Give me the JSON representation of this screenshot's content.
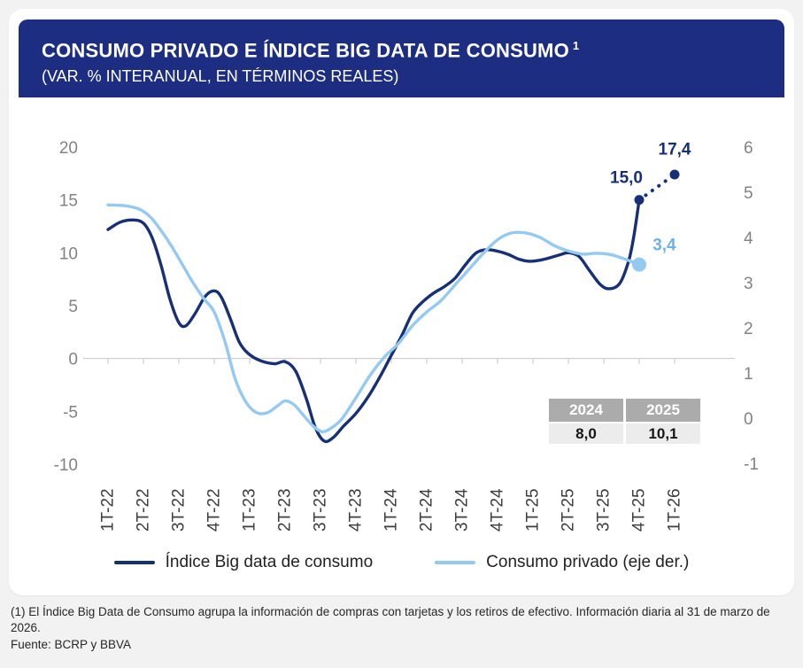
{
  "colors": {
    "page_bg": "#f2f2f2",
    "card_bg": "#ffffff",
    "header_bg": "#1c2d82",
    "header_text": "#ffffff",
    "axis_text": "#828282",
    "x_tick_text": "#3d3d3d",
    "zero_line": "#c6c6c6",
    "table_header_bg": "#ababab",
    "table_value_bg": "#ececec"
  },
  "chart_data": {
    "type": "line",
    "title": "CONSUMO PRIVADO E ÍNDICE BIG DATA DE CONSUMO",
    "footnote_marker": "1",
    "subtitle": "(VAR. % INTERANUAL, EN TÉRMINOS REALES)",
    "categories": [
      "1T-22",
      "2T-22",
      "3T-22",
      "4T-22",
      "1T-23",
      "2T-23",
      "3T-23",
      "4T-23",
      "1T-24",
      "2T-24",
      "3T-24",
      "4T-24",
      "1T-25",
      "2T-25",
      "3T-25",
      "4T-25",
      "1T-26"
    ],
    "left_axis": {
      "ticks": [
        20,
        15,
        10,
        5,
        0,
        -5,
        -10
      ],
      "max": 20,
      "min": -10
    },
    "right_axis": {
      "ticks": [
        6,
        5,
        4,
        3,
        2,
        1,
        0,
        -1
      ],
      "max": 6,
      "min": -1
    },
    "grid": false,
    "legend_position": "bottom",
    "series": [
      {
        "name": "Índice Big data de consumo",
        "axis": "left",
        "color": "#172f76",
        "points": [
          [
            0,
            12.2
          ],
          [
            0.35,
            12.9
          ],
          [
            0.7,
            13.1
          ],
          [
            1,
            12.8
          ],
          [
            1.25,
            11.4
          ],
          [
            1.5,
            8.8
          ],
          [
            1.75,
            5.6
          ],
          [
            2,
            3.4
          ],
          [
            2.2,
            3.1
          ],
          [
            2.45,
            4.2
          ],
          [
            2.75,
            5.9
          ],
          [
            3,
            6.4
          ],
          [
            3.2,
            5.8
          ],
          [
            3.45,
            3.8
          ],
          [
            3.7,
            1.6
          ],
          [
            3.95,
            0.5
          ],
          [
            4.3,
            -0.2
          ],
          [
            4.7,
            -0.5
          ],
          [
            5,
            -0.3
          ],
          [
            5.3,
            -1.2
          ],
          [
            5.6,
            -3.8
          ],
          [
            5.85,
            -6.5
          ],
          [
            6.1,
            -7.8
          ],
          [
            6.35,
            -7.5
          ],
          [
            6.65,
            -6.4
          ],
          [
            7,
            -5.2
          ],
          [
            7.35,
            -3.6
          ],
          [
            7.7,
            -1.6
          ],
          [
            8,
            0.3
          ],
          [
            8.3,
            2.2
          ],
          [
            8.6,
            4.3
          ],
          [
            8.9,
            5.4
          ],
          [
            9.2,
            6.2
          ],
          [
            9.5,
            6.8
          ],
          [
            9.8,
            7.6
          ],
          [
            10.1,
            8.9
          ],
          [
            10.4,
            10
          ],
          [
            10.7,
            10.3
          ],
          [
            11,
            10.15
          ],
          [
            11.3,
            9.85
          ],
          [
            11.6,
            9.4
          ],
          [
            11.9,
            9.2
          ],
          [
            12.2,
            9.3
          ],
          [
            12.5,
            9.55
          ],
          [
            12.8,
            9.85
          ],
          [
            13,
            10
          ],
          [
            13.3,
            9.65
          ],
          [
            13.6,
            8.3
          ],
          [
            13.9,
            7
          ],
          [
            14.15,
            6.6
          ],
          [
            14.45,
            7.1
          ],
          [
            14.7,
            9.2
          ],
          [
            14.85,
            11.6
          ],
          [
            15,
            15.0
          ]
        ],
        "forecast_points": [
          [
            15,
            15.0
          ],
          [
            16,
            17.4
          ]
        ]
      },
      {
        "name": "Consumo privado (eje der.)",
        "axis": "right",
        "color": "#94c9f2",
        "points": [
          [
            0,
            4.72
          ],
          [
            0.5,
            4.7
          ],
          [
            0.9,
            4.62
          ],
          [
            1.2,
            4.45
          ],
          [
            1.5,
            4.15
          ],
          [
            1.8,
            3.8
          ],
          [
            2.1,
            3.4
          ],
          [
            2.4,
            3.0
          ],
          [
            2.7,
            2.65
          ],
          [
            3,
            2.35
          ],
          [
            3.3,
            1.7
          ],
          [
            3.6,
            0.85
          ],
          [
            3.9,
            0.35
          ],
          [
            4.2,
            0.12
          ],
          [
            4.5,
            0.12
          ],
          [
            4.8,
            0.28
          ],
          [
            5,
            0.38
          ],
          [
            5.25,
            0.3
          ],
          [
            5.5,
            0.08
          ],
          [
            5.8,
            -0.18
          ],
          [
            6.05,
            -0.3
          ],
          [
            6.3,
            -0.22
          ],
          [
            6.6,
            -0.02
          ],
          [
            7,
            0.45
          ],
          [
            7.4,
            0.95
          ],
          [
            7.8,
            1.35
          ],
          [
            8.2,
            1.65
          ],
          [
            8.6,
            2.05
          ],
          [
            9,
            2.35
          ],
          [
            9.4,
            2.6
          ],
          [
            9.8,
            2.95
          ],
          [
            10.2,
            3.3
          ],
          [
            10.6,
            3.65
          ],
          [
            11,
            3.95
          ],
          [
            11.4,
            4.1
          ],
          [
            11.8,
            4.1
          ],
          [
            12.2,
            4.0
          ],
          [
            12.6,
            3.82
          ],
          [
            13,
            3.7
          ],
          [
            13.4,
            3.63
          ],
          [
            13.8,
            3.65
          ],
          [
            14.2,
            3.62
          ],
          [
            14.6,
            3.52
          ],
          [
            15,
            3.4
          ]
        ]
      }
    ],
    "markers": [
      {
        "x": 15,
        "value": 15.0,
        "axis": "left",
        "r": 5.5,
        "color": "#172f76"
      },
      {
        "x": 16,
        "value": 17.4,
        "axis": "left",
        "r": 5.5,
        "color": "#172f76"
      },
      {
        "x": 15,
        "value": 3.4,
        "axis": "right",
        "r": 8,
        "color": "#94c9f2"
      }
    ],
    "annotations": [
      {
        "text": "15,0",
        "x": 15.1,
        "value": 16.6,
        "axis": "left",
        "anchor": "end",
        "color": "#172f76"
      },
      {
        "text": "17,4",
        "x": 16,
        "value": 19.3,
        "axis": "left",
        "anchor": "middle",
        "color": "#172f76"
      },
      {
        "text": "3,4",
        "x": 15.38,
        "value": 3.72,
        "axis": "right",
        "anchor": "start",
        "color": "#6fb2e9"
      }
    ]
  },
  "overlay_table": {
    "headers": [
      "2024",
      "2025"
    ],
    "values": [
      "8,0",
      "10,1"
    ]
  },
  "footnote": {
    "note": "(1) El Índice Big Data de Consumo agrupa la información de compras con tarjetas y los retiros de efectivo. Información diaria al 31 de marzo de 2026.",
    "source": "Fuente: BCRP y BBVA"
  }
}
